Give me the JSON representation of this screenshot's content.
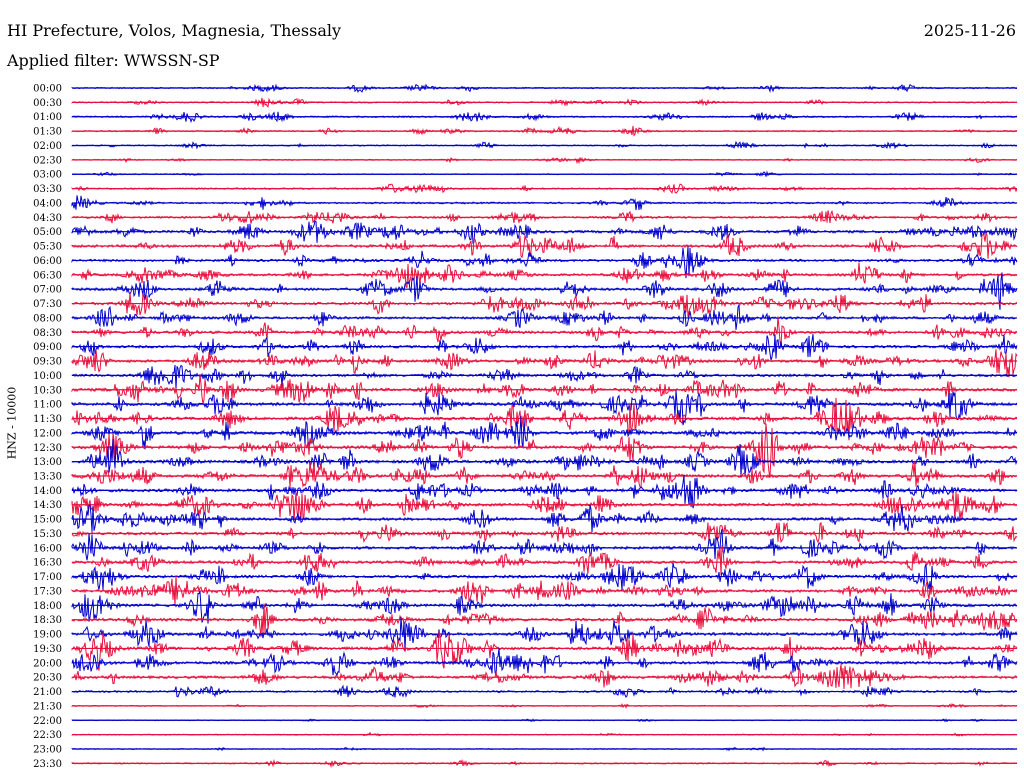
{
  "header": {
    "station": "HI Prefecture, Volos, Magnesia, Thessaly",
    "date": "2025-11-26",
    "filter": "Applied filter: WWSSN-SP"
  },
  "chart_data": {
    "type": "line",
    "channel_label": "HNZ - 10000",
    "row_labels": [
      "00:00",
      "00:30",
      "01:00",
      "01:30",
      "02:00",
      "02:30",
      "03:00",
      "03:30",
      "04:00",
      "04:30",
      "05:00",
      "05:30",
      "06:00",
      "06:30",
      "07:00",
      "07:30",
      "08:00",
      "08:30",
      "09:00",
      "09:30",
      "10:00",
      "10:30",
      "11:00",
      "11:30",
      "12:00",
      "12:30",
      "13:00",
      "13:30",
      "14:00",
      "14:30",
      "15:00",
      "15:30",
      "16:00",
      "16:30",
      "17:00",
      "17:30",
      "18:00",
      "18:30",
      "19:00",
      "19:30",
      "20:00",
      "20:30",
      "21:00",
      "21:30",
      "22:00",
      "22:30",
      "23:00",
      "23:30"
    ],
    "row_colors": [
      "#0000cc",
      "#e8103c"
    ],
    "relative_amplitude": [
      0.6,
      0.6,
      0.8,
      0.6,
      0.5,
      0.4,
      0.3,
      0.8,
      0.9,
      1.1,
      1.6,
      1.6,
      1.4,
      1.5,
      1.6,
      1.6,
      1.5,
      1.6,
      1.6,
      1.7,
      1.5,
      1.9,
      1.9,
      1.9,
      1.9,
      1.9,
      1.8,
      1.8,
      1.8,
      1.8,
      1.7,
      1.7,
      1.7,
      1.7,
      1.7,
      1.8,
      1.7,
      1.8,
      1.8,
      1.8,
      1.8,
      1.6,
      1.0,
      0.3,
      0.2,
      0.3,
      0.3,
      0.6
    ]
  }
}
